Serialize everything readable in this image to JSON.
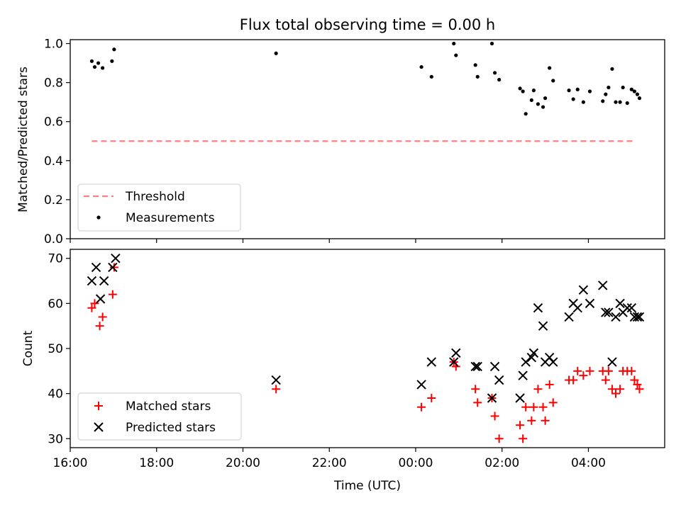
{
  "chart_data": [
    {
      "type": "scatter",
      "title": "Flux total observing time = 0.00 h",
      "xlabel": "",
      "ylabel": "Matched/Predicted stars",
      "xlim": [
        "16:00",
        "05:46"
      ],
      "ylim": [
        0,
        1.02
      ],
      "yticks": [
        0.0,
        0.2,
        0.4,
        0.6,
        0.8,
        1.0
      ],
      "ytick_labels": [
        "0.0",
        "0.2",
        "0.4",
        "0.6",
        "0.8",
        "1.0"
      ],
      "legend_position": "lower-left",
      "series": [
        {
          "name": "Threshold",
          "kind": "dashed-line",
          "color": "#ff7f7f",
          "x": [
            "16:30",
            "05:05"
          ],
          "y": [
            0.5,
            0.5
          ]
        },
        {
          "name": "Measurements",
          "kind": "dot",
          "color": "#000000",
          "x": [
            "16:30",
            "16:34",
            "16:39",
            "16:45",
            "16:58",
            "17:01",
            "20:46",
            "00:08",
            "00:22",
            "00:53",
            "00:56",
            "01:23",
            "01:26",
            "01:46",
            "01:50",
            "01:56",
            "02:25",
            "02:29",
            "02:33",
            "02:41",
            "02:44",
            "02:50",
            "02:57",
            "03:00",
            "03:06",
            "03:11",
            "03:33",
            "03:39",
            "03:45",
            "03:53",
            "04:02",
            "04:20",
            "04:24",
            "04:28",
            "04:33",
            "04:38",
            "04:44",
            "04:48",
            "04:54",
            "05:00",
            "05:04",
            "05:08",
            "05:11"
          ],
          "y": [
            0.91,
            0.88,
            0.9,
            0.875,
            0.91,
            0.97,
            0.95,
            0.88,
            0.83,
            1.0,
            0.94,
            0.89,
            0.83,
            1.0,
            0.85,
            0.815,
            0.77,
            0.755,
            0.64,
            0.71,
            0.76,
            0.69,
            0.675,
            0.72,
            0.875,
            0.81,
            0.76,
            0.715,
            0.765,
            0.7,
            0.755,
            0.705,
            0.74,
            0.775,
            0.87,
            0.7,
            0.7,
            0.775,
            0.695,
            0.765,
            0.755,
            0.74,
            0.72
          ]
        }
      ]
    },
    {
      "type": "scatter",
      "title": "",
      "xlabel": "Time (UTC)",
      "ylabel": "Count",
      "xlim": [
        "16:00",
        "05:46"
      ],
      "ylim": [
        28,
        72
      ],
      "yticks": [
        30,
        40,
        50,
        60,
        70
      ],
      "ytick_labels": [
        "30",
        "40",
        "50",
        "60",
        "70"
      ],
      "xticks": [
        "16:00",
        "18:00",
        "20:00",
        "22:00",
        "00:00",
        "02:00",
        "04:00"
      ],
      "xtick_labels": [
        "16:00",
        "18:00",
        "20:00",
        "22:00",
        "00:00",
        "02:00",
        "04:00"
      ],
      "legend_position": "lower-left",
      "series": [
        {
          "name": "Matched stars",
          "kind": "plus",
          "color": "#ff0000",
          "x": [
            "16:30",
            "16:34",
            "16:41",
            "16:45",
            "16:59",
            "17:01",
            "20:46",
            "00:08",
            "00:22",
            "00:53",
            "00:56",
            "01:23",
            "01:26",
            "01:46",
            "01:50",
            "01:56",
            "02:25",
            "02:29",
            "02:33",
            "02:41",
            "02:44",
            "02:50",
            "02:57",
            "03:00",
            "03:06",
            "03:11",
            "03:33",
            "03:39",
            "03:45",
            "03:53",
            "04:02",
            "04:20",
            "04:24",
            "04:28",
            "04:33",
            "04:38",
            "04:44",
            "04:48",
            "04:54",
            "05:00",
            "05:04",
            "05:08",
            "05:11"
          ],
          "y": [
            59,
            60,
            55,
            57,
            62,
            68,
            41,
            37,
            39,
            47,
            46,
            41,
            38,
            39,
            35,
            30,
            33,
            30,
            37,
            34,
            37,
            41,
            37,
            34,
            42,
            38,
            43,
            43,
            45,
            44,
            45,
            45,
            43,
            45,
            41,
            40,
            41,
            45,
            45,
            45,
            43,
            42,
            41
          ]
        },
        {
          "name": "Predicted stars",
          "kind": "x",
          "color": "#000000",
          "x": [
            "16:30",
            "16:36",
            "16:42",
            "16:47",
            "16:59",
            "17:03",
            "20:46",
            "00:08",
            "00:22",
            "00:53",
            "00:56",
            "01:23",
            "01:26",
            "01:46",
            "01:50",
            "01:56",
            "02:25",
            "02:29",
            "02:33",
            "02:41",
            "02:44",
            "02:50",
            "02:57",
            "03:00",
            "03:06",
            "03:11",
            "03:33",
            "03:39",
            "03:45",
            "03:53",
            "04:02",
            "04:20",
            "04:24",
            "04:28",
            "04:33",
            "04:38",
            "04:44",
            "04:48",
            "04:54",
            "05:00",
            "05:04",
            "05:08",
            "05:11"
          ],
          "y": [
            65,
            68,
            61,
            65,
            68,
            70,
            43,
            42,
            47,
            47,
            49,
            46,
            46,
            39,
            46,
            43,
            39,
            44,
            47,
            48,
            49,
            59,
            55,
            47,
            48,
            47,
            57,
            60,
            59,
            63,
            60,
            64,
            58,
            58,
            47,
            57,
            60,
            58,
            59,
            59,
            57,
            57,
            57
          ]
        }
      ]
    }
  ]
}
